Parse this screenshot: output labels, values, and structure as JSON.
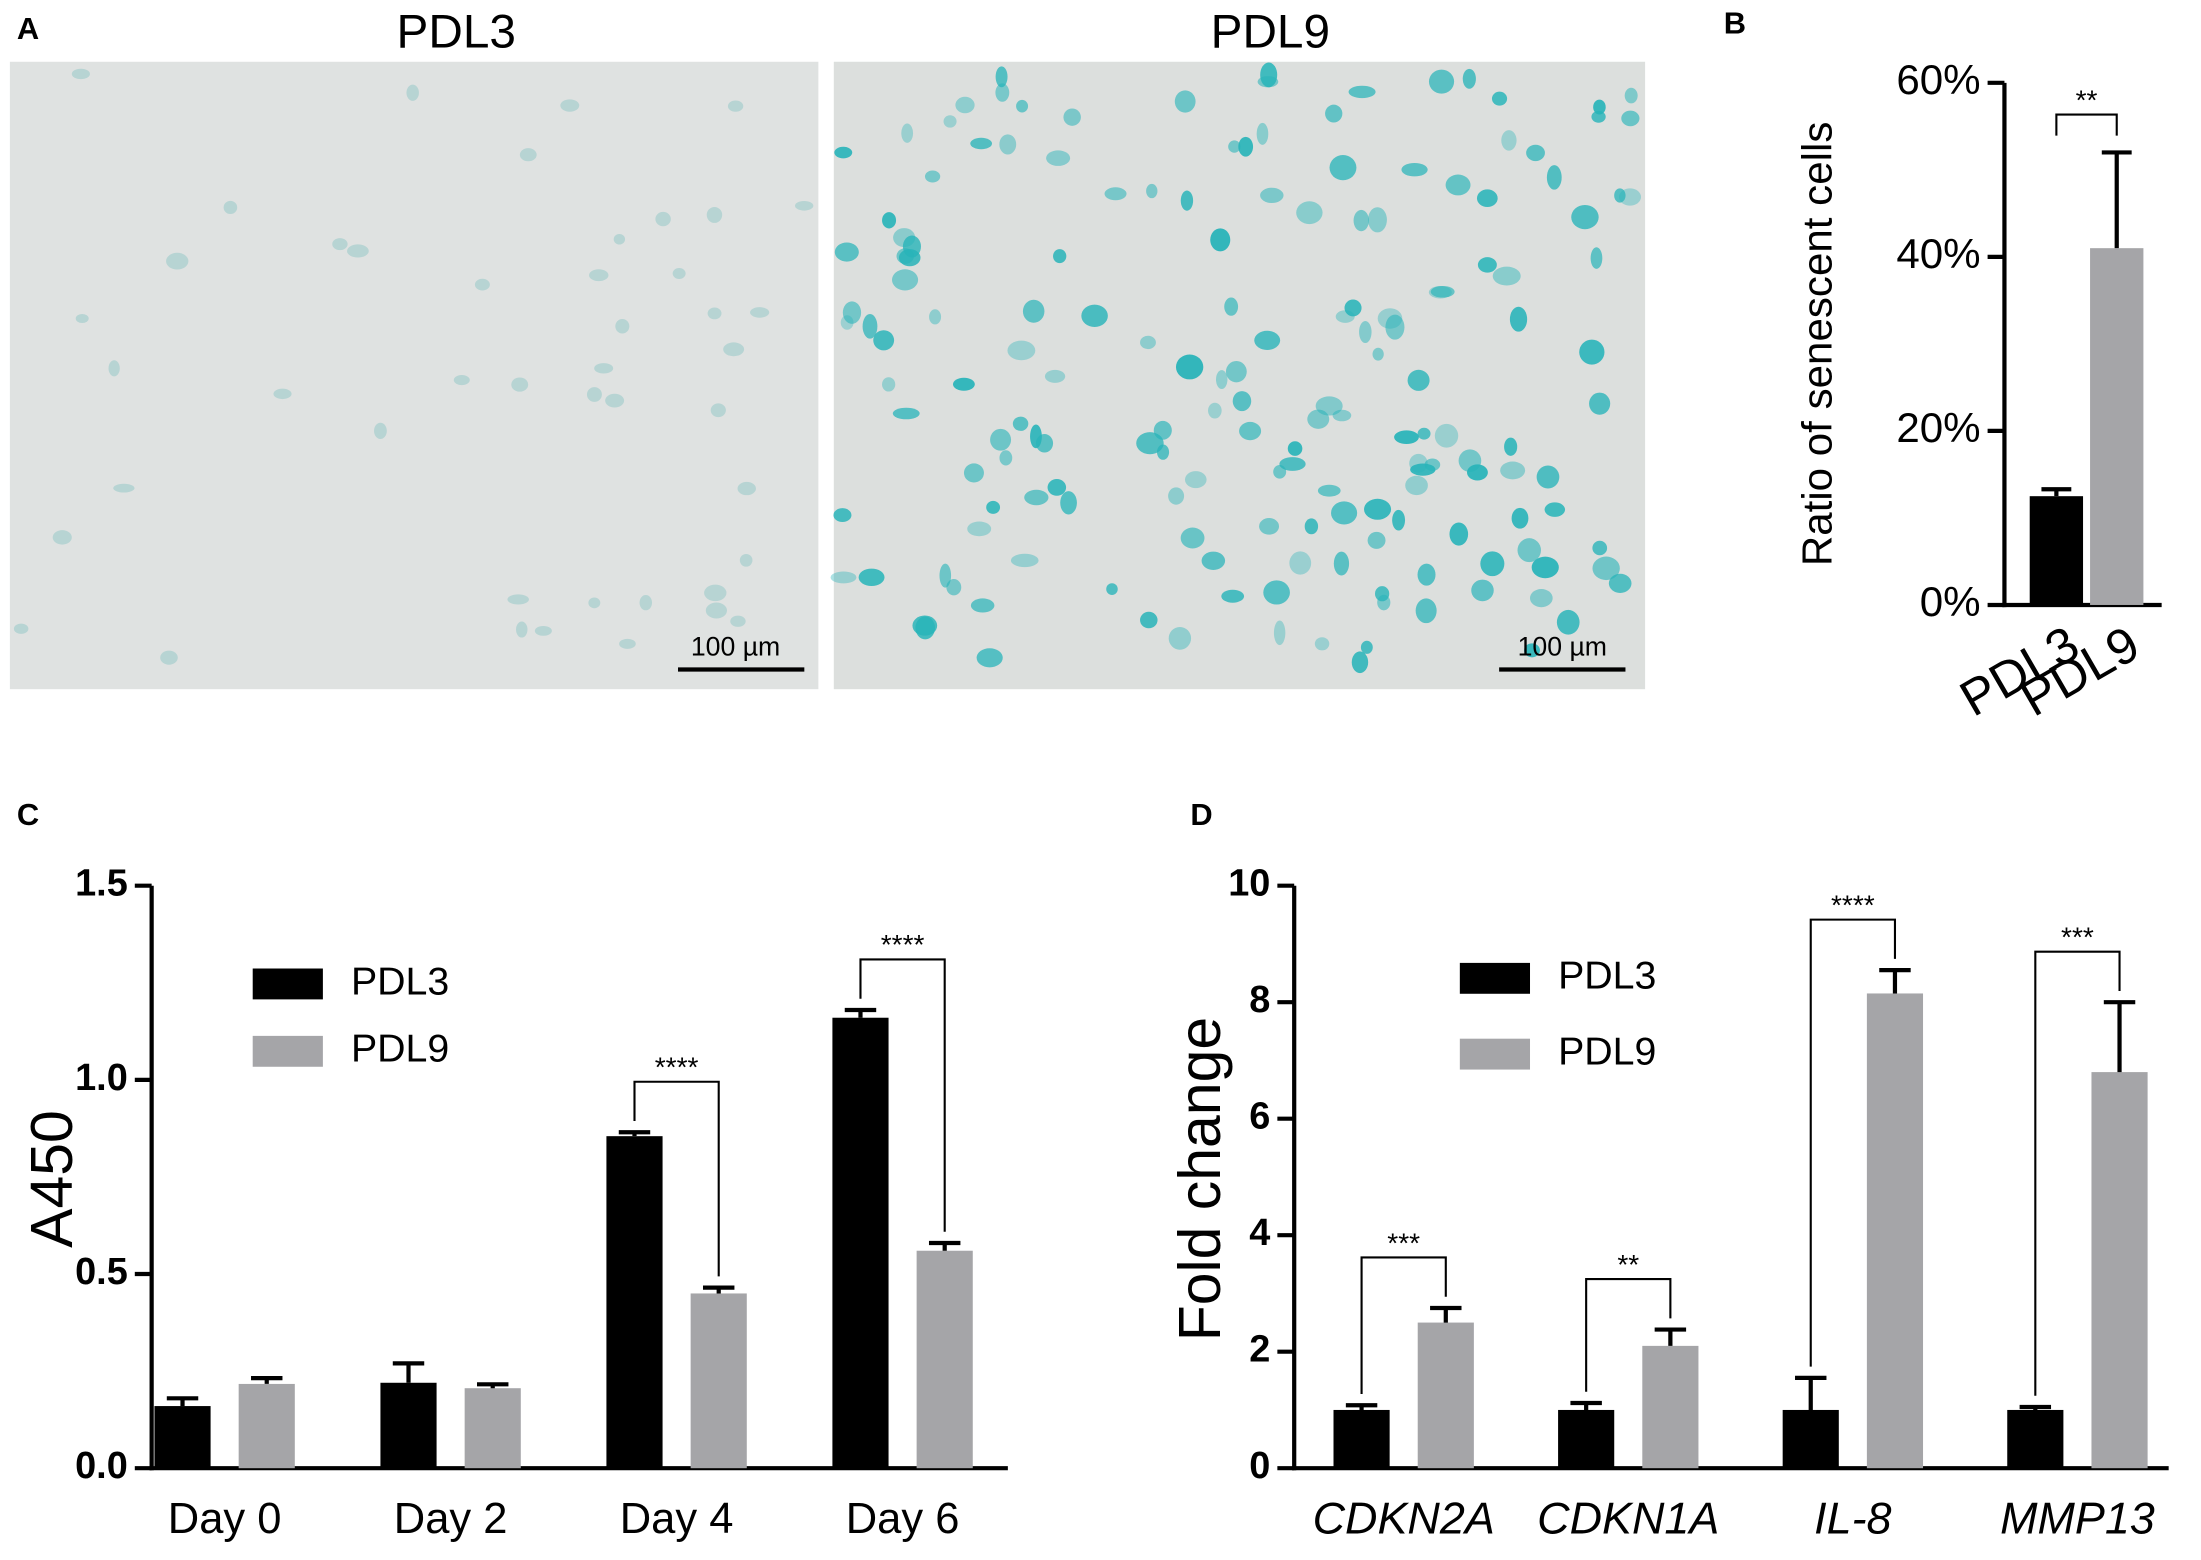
{
  "panel_a": {
    "label": "A",
    "images": [
      {
        "title": "PDL3",
        "scale_bar": "100 µm"
      },
      {
        "title": "PDL9",
        "scale_bar": "100 µm"
      }
    ]
  },
  "chart_data": [
    {
      "type": "bar",
      "panel_label": "B",
      "ylabel": "Ratio of senescent cells",
      "categories": [
        "PDL3",
        "PDL9"
      ],
      "values": [
        12.5,
        41
      ],
      "errors": [
        0.8,
        11
      ],
      "colors": [
        "#000000",
        "#a5a5a8"
      ],
      "significance": "**",
      "ylim": [
        0,
        60
      ],
      "yticks": [
        {
          "value": 0,
          "label": "0%"
        },
        {
          "value": 20,
          "label": "20%"
        },
        {
          "value": 40,
          "label": "40%"
        },
        {
          "value": 60,
          "label": "60%"
        }
      ]
    },
    {
      "type": "grouped-bar",
      "panel_label": "C",
      "ylabel": "A450",
      "categories": [
        "Day 0",
        "Day 2",
        "Day 4",
        "Day 6"
      ],
      "series": [
        {
          "name": "PDL3",
          "color": "#000000",
          "values": [
            0.16,
            0.22,
            0.855,
            1.16
          ],
          "errors": [
            0.02,
            0.05,
            0.01,
            0.02
          ]
        },
        {
          "name": "PDL9",
          "color": "#a5a5a8",
          "values": [
            0.217,
            0.206,
            0.45,
            0.56
          ],
          "errors": [
            0.015,
            0.01,
            0.015,
            0.02
          ]
        }
      ],
      "significance": [
        null,
        null,
        "****",
        "****"
      ],
      "ylim": [
        0,
        1.5
      ],
      "yticks": [
        {
          "value": 0,
          "label": "0.0"
        },
        0.5,
        {
          "value": 1,
          "label": "1.0"
        },
        1.5
      ]
    },
    {
      "type": "grouped-bar",
      "panel_label": "D",
      "ylabel": "Fold change",
      "categories": [
        "CDKN2A",
        "CDKN1A",
        "IL-8",
        "MMP13"
      ],
      "series": [
        {
          "name": "PDL3",
          "color": "#000000",
          "values": [
            1.0,
            1.0,
            1.0,
            1.0
          ],
          "errors": [
            0.08,
            0.12,
            0.55,
            0.05
          ]
        },
        {
          "name": "PDL9",
          "color": "#a5a5a8",
          "values": [
            2.5,
            2.1,
            8.15,
            6.8
          ],
          "errors": [
            0.25,
            0.28,
            0.4,
            1.2
          ]
        }
      ],
      "significance": [
        "***",
        "**",
        "****",
        "***"
      ],
      "ylim": [
        0,
        10
      ],
      "yticks": [
        0,
        2,
        4,
        6,
        8,
        10
      ]
    }
  ]
}
